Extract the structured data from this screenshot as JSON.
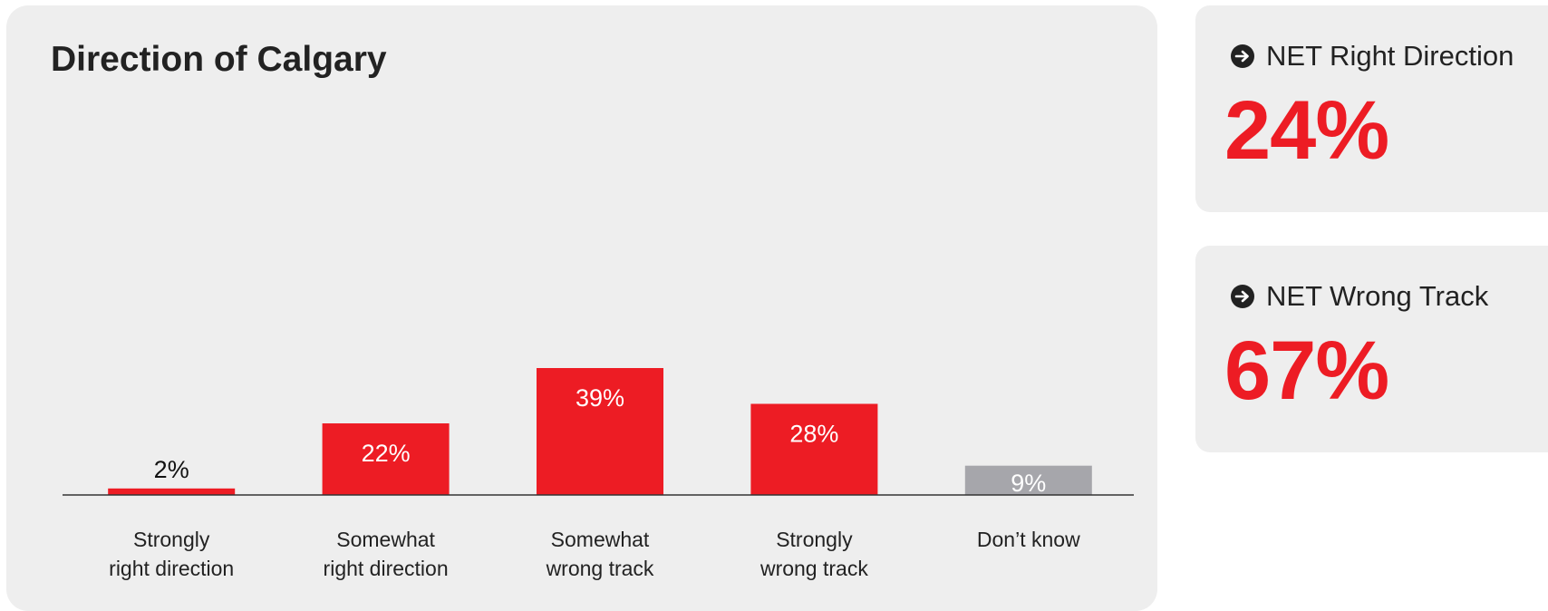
{
  "chart_data": {
    "type": "bar",
    "title": "Direction of Calgary",
    "categories": [
      [
        "Strongly",
        "right direction"
      ],
      [
        "Somewhat",
        "right direction"
      ],
      [
        "Somewhat",
        "wrong track"
      ],
      [
        "Strongly",
        "wrong track"
      ],
      [
        "Don’t know"
      ]
    ],
    "values": [
      2,
      22,
      39,
      28,
      9
    ],
    "data_labels": [
      "2%",
      "22%",
      "39%",
      "28%",
      "9%"
    ],
    "bar_colors": [
      "#ed1c24",
      "#ed1c24",
      "#ed1c24",
      "#ed1c24",
      "#a6a6ab"
    ],
    "label_colors": [
      "#111111",
      "#ffffff",
      "#ffffff",
      "#ffffff",
      "#ffffff"
    ],
    "ylim": [
      0,
      39
    ],
    "grid": false,
    "xlabel": "",
    "ylabel": ""
  },
  "summary": {
    "net_right": {
      "label": "NET Right Direction",
      "value": "24%",
      "icon": "arrow-right-circle-icon"
    },
    "net_wrong": {
      "label": "NET Wrong Track",
      "value": "67%",
      "icon": "arrow-right-circle-icon"
    }
  },
  "colors": {
    "accent": "#ed1c24",
    "neutral_bar": "#a6a6ab",
    "panel": "#eeeeee",
    "text": "#222222"
  }
}
